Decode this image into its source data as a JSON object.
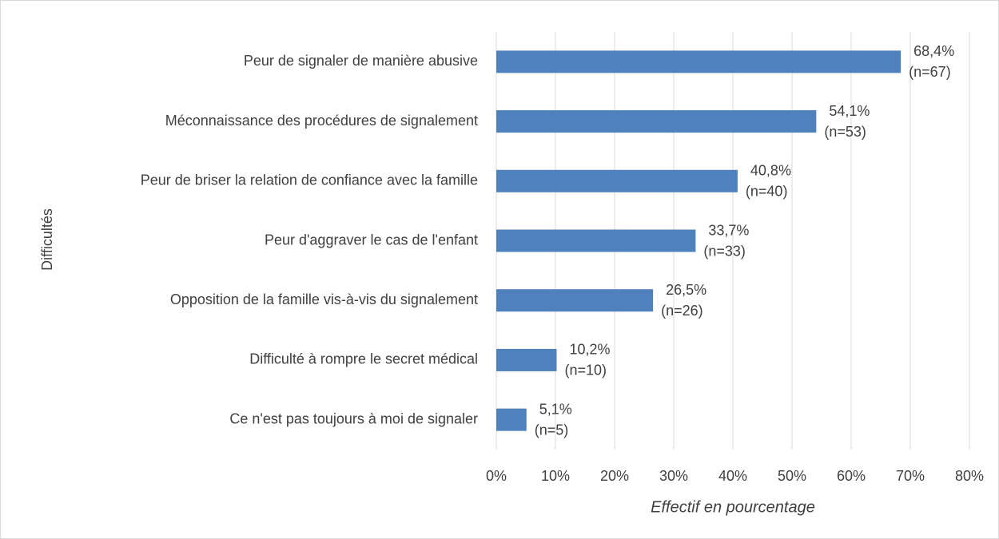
{
  "chart_data": {
    "type": "barh",
    "ylabel": "Difficultés",
    "xlabel": "Effectif en pourcentage",
    "categories": [
      "Peur de signaler de manière abusive",
      "Méconnaissance des procédures de signalement",
      "Peur de briser la relation de confiance avec la famille",
      "Peur d'aggraver le cas de l'enfant",
      "Opposition de la famille vis-à-vis du signalement",
      "Difficulté à rompre le secret médical",
      "Ce n'est pas toujours à moi de signaler"
    ],
    "values": [
      68.4,
      54.1,
      40.8,
      33.7,
      26.5,
      10.2,
      5.1
    ],
    "value_labels": [
      "68,4%",
      "54,1%",
      "40,8%",
      "33,7%",
      "26,5%",
      "10,2%",
      "5,1%"
    ],
    "n_labels": [
      "(n=67)",
      "(n=53)",
      "(n=40)",
      "(n=33)",
      "(n=26)",
      "(n=10)",
      "(n=5)"
    ],
    "color": "#4f81bd",
    "xlim": [
      0,
      80
    ],
    "xticks": [
      {
        "value": 0,
        "label": "0%"
      },
      {
        "value": 10,
        "label": "10%"
      },
      {
        "value": 20,
        "label": "20%"
      },
      {
        "value": 30,
        "label": "30%"
      },
      {
        "value": 40,
        "label": "40%"
      },
      {
        "value": 50,
        "label": "50%"
      },
      {
        "value": 60,
        "label": "60%"
      },
      {
        "value": 70,
        "label": "70%"
      },
      {
        "value": 80,
        "label": "80%"
      }
    ],
    "grid": true
  }
}
